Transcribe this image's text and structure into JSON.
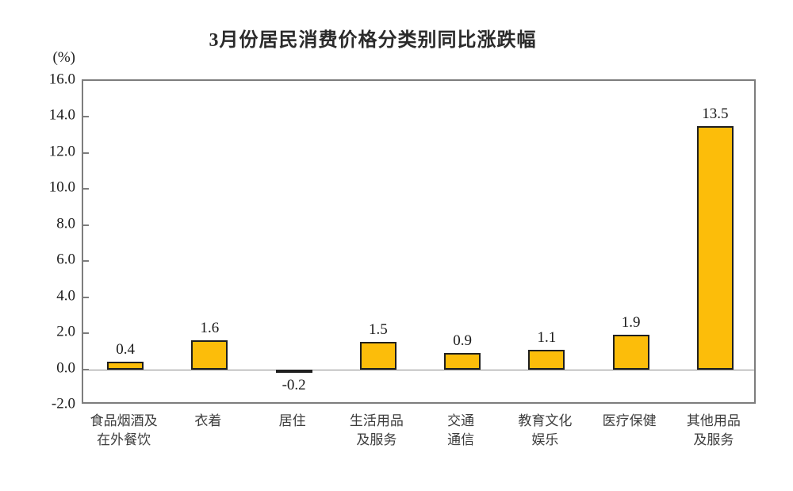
{
  "chart": {
    "title": "3月份居民消费价格分类别同比涨跌幅",
    "unit_label": "(%)"
  },
  "chart_data": {
    "type": "bar",
    "title": "3月份居民消费价格分类别同比涨跌幅",
    "xlabel": "",
    "ylabel": "(%)",
    "ylim": [
      -2.0,
      16.0
    ],
    "ytick_step": 2.0,
    "yticks": [
      "16.0",
      "14.0",
      "12.0",
      "10.0",
      "8.0",
      "6.0",
      "4.0",
      "2.0",
      "0.0",
      "-2.0"
    ],
    "categories": [
      "食品烟酒及\n在外餐饮",
      "衣着",
      "居住",
      "生活用品\n及服务",
      "交通\n通信",
      "教育文化\n娱乐",
      "医疗保健",
      "其他用品\n及服务"
    ],
    "values": [
      0.4,
      1.6,
      -0.2,
      1.5,
      0.9,
      1.1,
      1.9,
      13.5
    ],
    "data_labels": [
      "0.4",
      "1.6",
      "-0.2",
      "1.5",
      "0.9",
      "1.1",
      "1.9",
      "13.5"
    ],
    "grid": false,
    "legend": false,
    "colors": {
      "positive_bar": "#FCBD0A",
      "negative_bar": "#2E93C5",
      "bar_border": "#1F1F1F",
      "axis_frame": "#7D7D7D",
      "zero_line": "#8A8A8A",
      "text": "#1A1A1A"
    }
  }
}
